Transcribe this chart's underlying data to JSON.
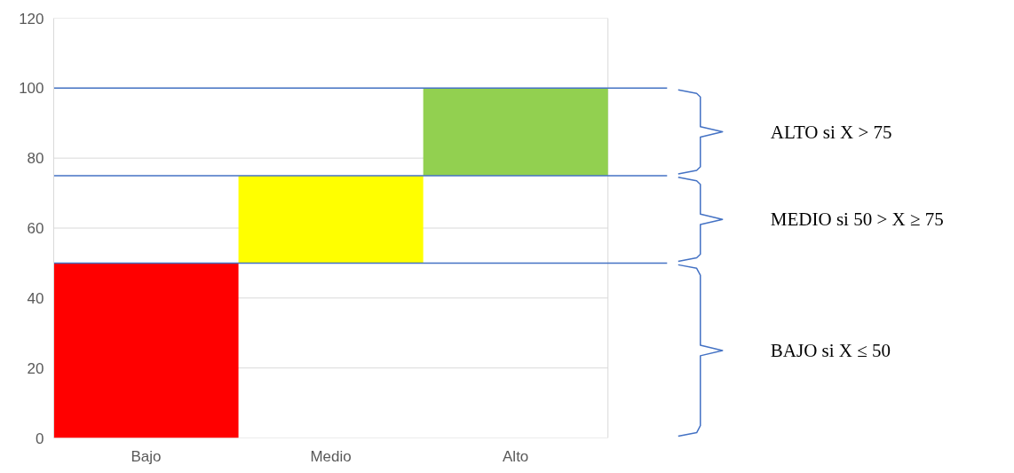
{
  "chart_data": {
    "type": "bar",
    "categories": [
      "Bajo",
      "Medio",
      "Alto"
    ],
    "values": [
      50,
      25,
      25
    ],
    "base": [
      0,
      50,
      75
    ],
    "colors": [
      "#ff0000",
      "#ffff00",
      "#92d050"
    ],
    "ylim": [
      0,
      120
    ],
    "yticks": [
      0,
      20,
      40,
      60,
      80,
      100,
      120
    ],
    "grid": "y",
    "ref_lines": [
      {
        "axis": "y",
        "value": 50,
        "color": "#4472c4"
      },
      {
        "axis": "y",
        "value": 75,
        "color": "#4472c4"
      },
      {
        "axis": "y",
        "value": 100,
        "color": "#4472c4"
      }
    ],
    "annotations": [
      "ALTO si X > 75",
      "MEDIO si 50 > X ≥ 75",
      "BAJO si X ≤ 50"
    ]
  }
}
